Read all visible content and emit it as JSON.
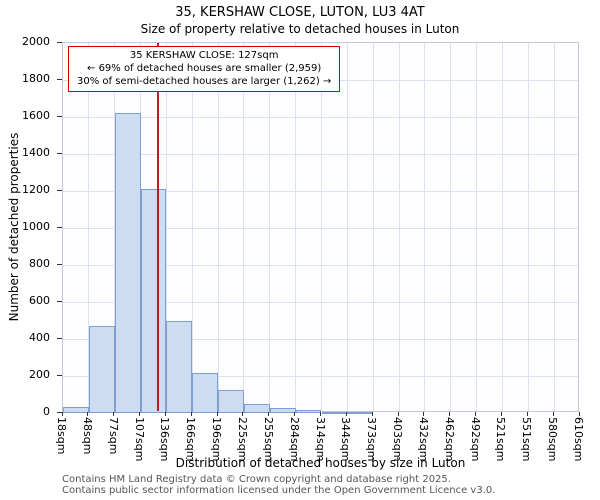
{
  "chart_data": {
    "type": "bar",
    "title": "35, KERSHAW CLOSE, LUTON, LU3 4AT",
    "subtitle": "Size of property relative to detached houses in Luton",
    "xlabel": "Distribution of detached houses by size in Luton",
    "ylabel": "Number of detached properties",
    "ylim": [
      0,
      2000
    ],
    "ytick_step": 200,
    "x_range_sqm": [
      18,
      610
    ],
    "tick_labels": [
      "18sqm",
      "48sqm",
      "77sqm",
      "107sqm",
      "136sqm",
      "166sqm",
      "196sqm",
      "225sqm",
      "255sqm",
      "284sqm",
      "314sqm",
      "344sqm",
      "373sqm",
      "403sqm",
      "432sqm",
      "462sqm",
      "492sqm",
      "521sqm",
      "551sqm",
      "580sqm",
      "610sqm"
    ],
    "bin_values": [
      30,
      470,
      1620,
      1210,
      500,
      215,
      125,
      50,
      25,
      15,
      5,
      3,
      0,
      0,
      0,
      0,
      0,
      0,
      0,
      0
    ],
    "marker": {
      "value_sqm": 127
    },
    "colors": {
      "bar_fill": "#cedcf1",
      "bar_border": "#7d9fd3",
      "grid": "#dbe2ef",
      "marker_line": "#b22222",
      "annotation_border": "#cc0000"
    }
  },
  "annotation": {
    "line1": "35 KERSHAW CLOSE: 127sqm",
    "line2": "← 69% of detached houses are smaller (2,959)",
    "line3": "30% of semi-detached houses are larger (1,262) →"
  },
  "footer": {
    "line1": "Contains HM Land Registry data © Crown copyright and database right 2025.",
    "line2": "Contains public sector information licensed under the Open Government Licence v3.0."
  }
}
